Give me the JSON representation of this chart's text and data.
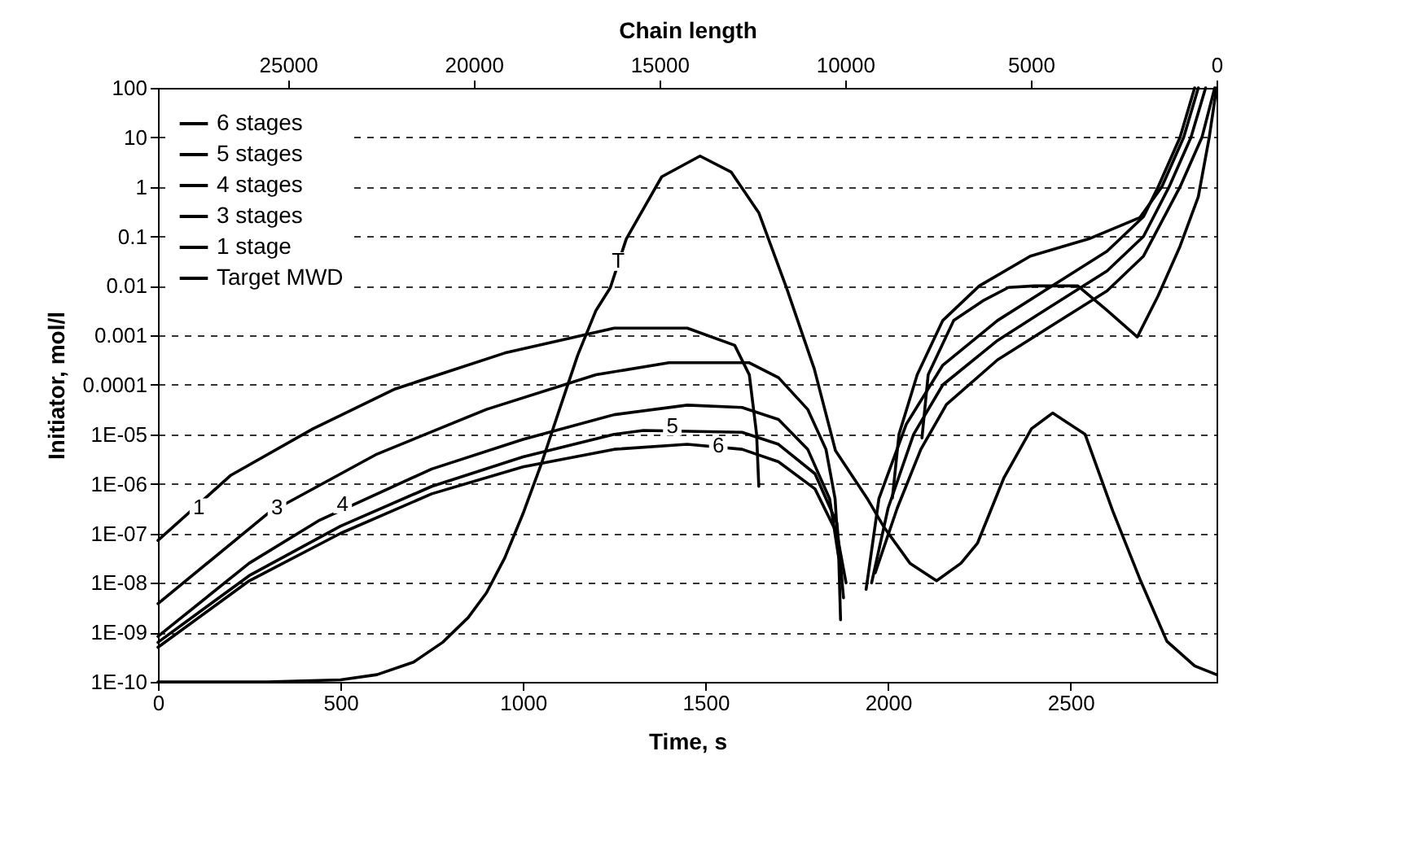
{
  "chart_data": {
    "type": "line",
    "xlabel": "Time, s",
    "ylabel": "Initiator, mol/l",
    "x2label": "Chain length",
    "xlim": [
      0,
      2900
    ],
    "xticks": [
      0,
      500,
      1000,
      1500,
      2000,
      2500
    ],
    "x2lim": [
      28500,
      0
    ],
    "x2ticks": [
      25000,
      20000,
      15000,
      10000,
      5000,
      0
    ],
    "ylim": [
      1e-10,
      100
    ],
    "log": "y",
    "yticks": [
      {
        "value": 1e-10,
        "label": "1E-10"
      },
      {
        "value": 1e-09,
        "label": "1E-09"
      },
      {
        "value": 1e-08,
        "label": "1E-08"
      },
      {
        "value": 1e-07,
        "label": "1E-07"
      },
      {
        "value": 1e-06,
        "label": "1E-06"
      },
      {
        "value": 1e-05,
        "label": "1E-05"
      },
      0.0001,
      0.001,
      0.01,
      0.1,
      1,
      10,
      100
    ],
    "grid": "y",
    "legend": "top left",
    "line_style": "solid",
    "series": [
      {
        "name": "6 stages",
        "color": "#000000",
        "x": [
          0,
          250,
          500,
          750,
          1000,
          1250,
          1450,
          1600,
          1700,
          1800,
          1860,
          1885,
          1920,
          1965,
          2025,
          2090,
          2160,
          2300,
          2450,
          2600,
          2700,
          2800,
          2860,
          2895
        ],
        "values": [
          5e-10,
          1.1e-08,
          1e-07,
          6.3e-07,
          2.2e-06,
          5e-06,
          6.3e-06,
          5e-06,
          2.8e-06,
          7.9e-07,
          1e-07,
          1e-08,
          null,
          1.6e-08,
          3.2e-07,
          5e-06,
          4e-05,
          0.00032,
          0.0016,
          0.0079,
          0.04,
          1,
          10,
          100
        ]
      },
      {
        "name": "5 stages",
        "color": "#000000",
        "x": [
          0,
          250,
          500,
          750,
          1000,
          1250,
          1330,
          1600,
          1700,
          1800,
          1860,
          1878,
          1915,
          1955,
          2000,
          2070,
          2150,
          2300,
          2450,
          2600,
          2700,
          2770,
          2830,
          2870
        ],
        "values": [
          6.3e-10,
          1.4e-08,
          1.4e-07,
          8.9e-07,
          3.5e-06,
          1e-05,
          1.2e-05,
          1.1e-05,
          6.3e-06,
          1.6e-06,
          1.6e-07,
          5e-09,
          null,
          1e-08,
          3.2e-07,
          1e-05,
          0.0001,
          0.00079,
          0.004,
          0.02,
          0.1,
          1,
          10,
          100
        ]
      },
      {
        "name": "4 stages",
        "color": "#000000",
        "x": [
          0,
          250,
          440,
          750,
          1000,
          1250,
          1450,
          1600,
          1700,
          1780,
          1840,
          1865,
          1870,
          1905,
          1940,
          1975,
          2050,
          2150,
          2300,
          2450,
          2600,
          2700,
          2740,
          2800,
          2840
        ],
        "values": [
          8.3e-10,
          2.5e-08,
          1.8e-07,
          2e-06,
          7.9e-06,
          2.5e-05,
          3.9e-05,
          3.5e-05,
          2e-05,
          5e-06,
          5e-07,
          3.2e-08,
          1.8e-09,
          null,
          7.4e-09,
          5e-07,
          1.6e-05,
          0.00025,
          0.002,
          0.01,
          0.05,
          0.25,
          1,
          10,
          100
        ]
      },
      {
        "name": "3 stages",
        "color": "#000000",
        "x": [
          0,
          300,
          600,
          900,
          1200,
          1400,
          1620,
          1700,
          1780,
          1830,
          1855,
          1865,
          1940,
          2012,
          2030,
          2080,
          2150,
          2250,
          2390,
          2550,
          2690,
          2750,
          2810,
          2850
        ],
        "values": [
          3.8e-09,
          2.5e-07,
          4e-06,
          3.2e-05,
          0.00016,
          0.00028,
          0.00028,
          0.00014,
          3.2e-05,
          5e-06,
          5e-07,
          3.2e-08,
          null,
          5.2e-07,
          1e-05,
          0.00016,
          0.002,
          0.01,
          0.04,
          0.089,
          0.24,
          1,
          10,
          100
        ]
      },
      {
        "name": "1 stage",
        "color": "#000000",
        "x": [
          0,
          200,
          425,
          650,
          950,
          1250,
          1450,
          1580,
          1620,
          1640,
          1646,
          1850,
          2093,
          2110,
          2180,
          2260,
          2330,
          2400,
          2520,
          2600,
          2683,
          2740,
          2800,
          2850,
          2880,
          2900
        ],
        "values": [
          7.2e-08,
          1.5e-06,
          1.3e-05,
          8.3e-05,
          0.00044,
          0.0014,
          0.0014,
          0.00063,
          0.00016,
          1e-05,
          8.9e-07,
          null,
          8.5e-06,
          0.00016,
          0.002,
          0.005,
          0.0093,
          0.01,
          0.01,
          0.0032,
          0.00093,
          0.0063,
          0.063,
          0.63,
          10,
          100
        ]
      },
      {
        "name": "Target MWD",
        "color": "#000000",
        "x": [
          0,
          300,
          500,
          600,
          700,
          780,
          850,
          900,
          950,
          1000,
          1050,
          1100,
          1150,
          1200,
          1239,
          1283,
          1380,
          1485,
          1570,
          1646,
          1722,
          1798,
          1856,
          1945,
          1990,
          2060,
          2133,
          2200,
          2245,
          2317,
          2393,
          2451,
          2540,
          2616,
          2692,
          2764,
          2840,
          2900
        ],
        "values": [
          1e-10,
          1e-10,
          1.1e-10,
          1.4e-10,
          2.5e-10,
          6.3e-10,
          2e-09,
          6.3e-09,
          3.2e-08,
          2.5e-07,
          2.5e-06,
          3.2e-05,
          0.0004,
          0.0032,
          0.0091,
          0.089,
          1.6,
          4.2,
          2.0,
          0.3,
          0.0091,
          0.00021,
          4.7e-06,
          4.8e-07,
          1.3e-07,
          2.5e-08,
          1.1e-08,
          2.5e-08,
          6.3e-08,
          1.3e-06,
          1.3e-05,
          2.7e-05,
          1e-05,
          2.8e-07,
          1.1e-08,
          6.6e-10,
          2.1e-10,
          1.4e-10
        ]
      }
    ],
    "annotations": [
      {
        "text": "1",
        "x": 112,
        "y": 3.3e-07
      },
      {
        "text": "3",
        "x": 326,
        "y": 3.3e-07
      },
      {
        "text": "4",
        "x": 506,
        "y": 3.9e-07
      },
      {
        "text": "5",
        "x": 1409,
        "y": 1.45e-05
      },
      {
        "text": "6",
        "x": 1535,
        "y": 5.9e-06
      },
      {
        "text": "T",
        "x": 1261,
        "y": 0.031
      }
    ]
  }
}
